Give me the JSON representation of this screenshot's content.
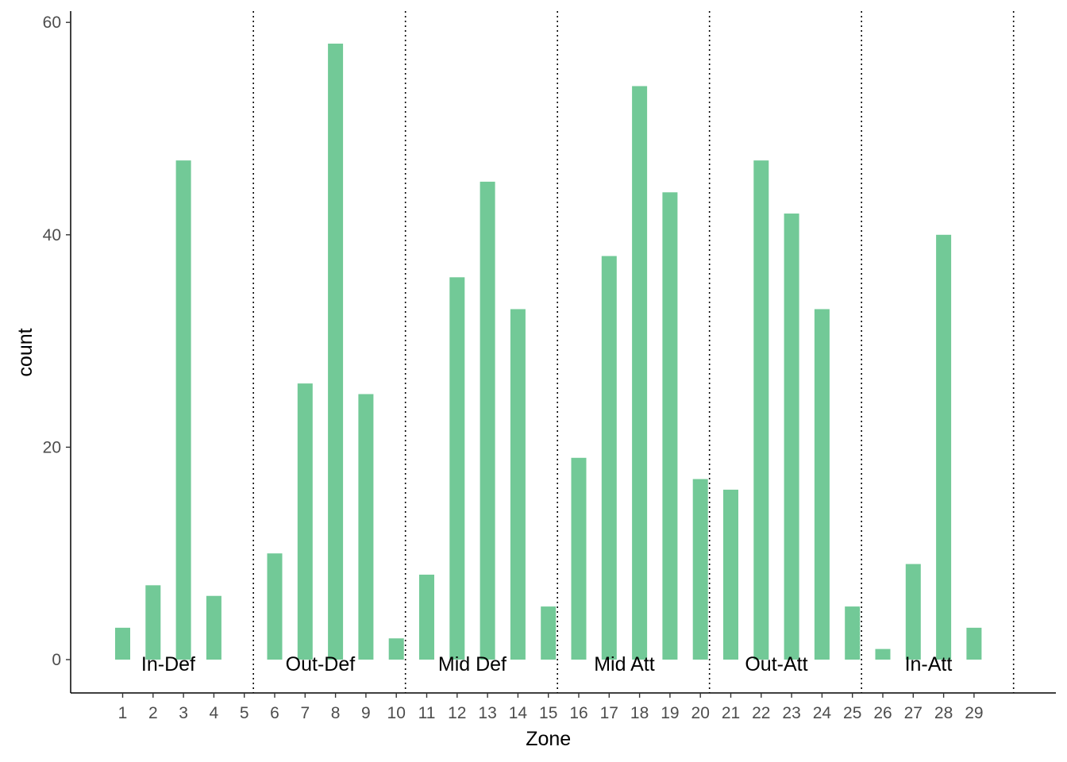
{
  "chart_data": {
    "type": "bar",
    "xlabel": "Zone",
    "ylabel": "count",
    "categories": [
      "1",
      "2",
      "3",
      "4",
      "5",
      "6",
      "7",
      "8",
      "9",
      "10",
      "11",
      "12",
      "13",
      "14",
      "15",
      "16",
      "17",
      "18",
      "19",
      "20",
      "21",
      "22",
      "23",
      "24",
      "25",
      "26",
      "27",
      "28",
      "29"
    ],
    "values": [
      3,
      7,
      47,
      6,
      0,
      10,
      26,
      58,
      25,
      2,
      8,
      36,
      45,
      33,
      5,
      19,
      38,
      54,
      44,
      17,
      16,
      47,
      42,
      33,
      5,
      1,
      9,
      40,
      3
    ],
    "ylim": [
      0,
      60
    ],
    "yticks": [
      0,
      20,
      40,
      60
    ],
    "bar_color": "#72c997",
    "grid": false,
    "zone_dividers": [
      5.3,
      10.3,
      15.3,
      20.3,
      25.3,
      30.3
    ],
    "zone_labels": [
      {
        "text": "In-Def",
        "x": 2.5
      },
      {
        "text": "Out-Def",
        "x": 7.5
      },
      {
        "text": "Mid Def",
        "x": 12.5
      },
      {
        "text": "Mid Att",
        "x": 17.5
      },
      {
        "text": "Out-Att",
        "x": 22.5
      },
      {
        "text": "In-Att",
        "x": 27.5
      }
    ]
  }
}
